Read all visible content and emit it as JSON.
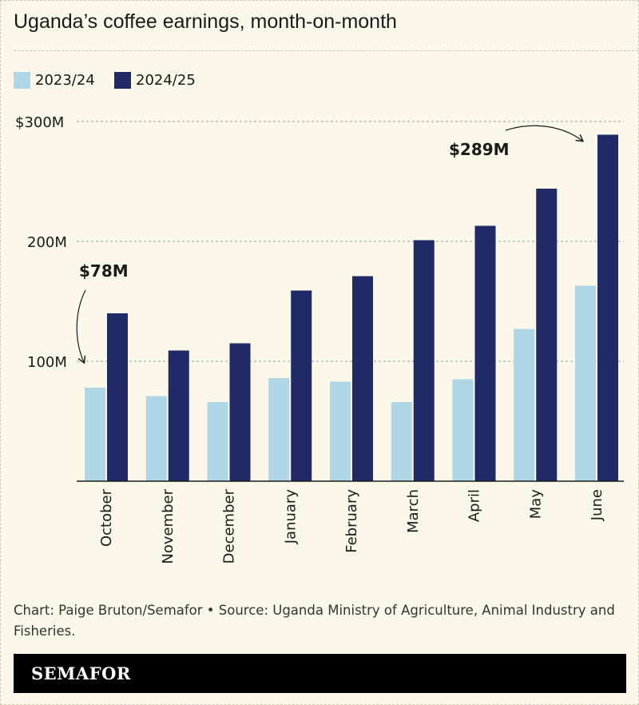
{
  "title": "Uganda’s coffee earnings, month-on-month",
  "source": "Chart: Paige Bruton/Semafor  • Source: Uganda Ministry of Agriculture, Animal Industry and Fisheries.",
  "brand": "SEMAFOR",
  "chart_data": {
    "type": "bar",
    "categories": [
      "October",
      "November",
      "December",
      "January",
      "February",
      "March",
      "April",
      "May",
      "June"
    ],
    "series": [
      {
        "name": "2023/24",
        "color": "#aed6e6",
        "values": [
          78,
          71,
          66,
          86,
          83,
          66,
          85,
          127,
          163
        ]
      },
      {
        "name": "2024/25",
        "color": "#1f2a66",
        "values": [
          140,
          109,
          115,
          159,
          171,
          201,
          213,
          244,
          289
        ]
      }
    ],
    "ylim": [
      0,
      300
    ],
    "yticks": [
      {
        "value": 100,
        "label": "100M"
      },
      {
        "value": 200,
        "label": "200M"
      },
      {
        "value": 300,
        "label": "$300M"
      }
    ],
    "grid": true,
    "legend": "top-left",
    "annotations": [
      {
        "text": "$78M",
        "category": "October",
        "series": "2023/24"
      },
      {
        "text": "$289M",
        "category": "June",
        "series": "2024/25"
      }
    ]
  }
}
